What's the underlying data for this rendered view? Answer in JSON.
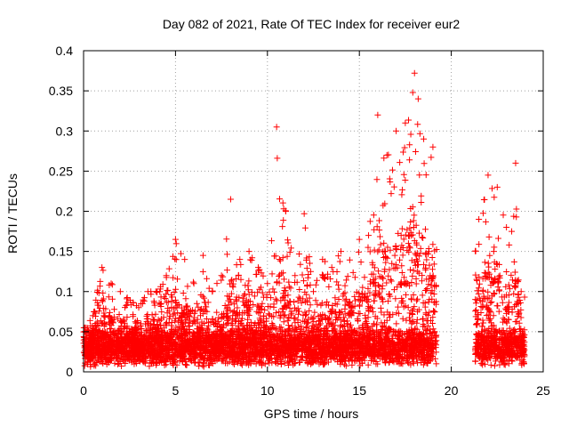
{
  "chart_data": {
    "type": "scatter",
    "title": "Day 082 of 2021, Rate Of TEC Index for receiver eur2",
    "xlabel": "GPS time / hours",
    "ylabel": "ROTI / TECUs",
    "xlim": [
      0,
      25
    ],
    "ylim": [
      0,
      0.4
    ],
    "x_ticks": [
      0,
      5,
      10,
      15,
      20,
      25
    ],
    "x_tick_labels": [
      "0",
      "5",
      "10",
      "15",
      "20",
      "25"
    ],
    "y_ticks": [
      0,
      0.05,
      0.1,
      0.15,
      0.2,
      0.25,
      0.3,
      0.35,
      0.4
    ],
    "y_tick_labels": [
      "0",
      "0.05",
      "0.1",
      "0.15",
      "0.2",
      "0.25",
      "0.3",
      "0.35",
      "0.4"
    ],
    "grid": true,
    "marker": "+",
    "color": "#ff0000",
    "segments": [
      {
        "x_start": 0.0,
        "x_end": 19.2
      },
      {
        "x_start": 21.3,
        "x_end": 24.0
      }
    ],
    "points": [
      [
        0.1,
        0.055
      ],
      [
        0.5,
        0.07
      ],
      [
        1.0,
        0.13
      ],
      [
        1.5,
        0.11
      ],
      [
        2.0,
        0.1
      ],
      [
        3.0,
        0.08
      ],
      [
        3.5,
        0.1
      ],
      [
        4.0,
        0.1
      ],
      [
        4.5,
        0.12
      ],
      [
        5.0,
        0.165
      ],
      [
        5.5,
        0.14
      ],
      [
        6.0,
        0.11
      ],
      [
        6.5,
        0.145
      ],
      [
        7.0,
        0.1
      ],
      [
        7.5,
        0.12
      ],
      [
        8.0,
        0.215
      ],
      [
        8.5,
        0.14
      ],
      [
        9.0,
        0.15
      ],
      [
        9.5,
        0.13
      ],
      [
        10.0,
        0.11
      ],
      [
        10.5,
        0.305
      ],
      [
        11.0,
        0.2
      ],
      [
        11.5,
        0.12
      ],
      [
        12.0,
        0.197
      ],
      [
        12.5,
        0.1
      ],
      [
        13.0,
        0.14
      ],
      [
        13.5,
        0.13
      ],
      [
        14.0,
        0.15
      ],
      [
        15.0,
        0.165
      ],
      [
        15.5,
        0.17
      ],
      [
        16.0,
        0.32
      ],
      [
        16.5,
        0.27
      ],
      [
        17.0,
        0.3
      ],
      [
        17.5,
        0.31
      ],
      [
        18.0,
        0.372
      ],
      [
        18.2,
        0.34
      ],
      [
        18.5,
        0.29
      ],
      [
        19.0,
        0.28
      ],
      [
        21.5,
        0.19
      ],
      [
        22.0,
        0.245
      ],
      [
        22.5,
        0.23
      ],
      [
        23.0,
        0.18
      ],
      [
        23.5,
        0.26
      ],
      [
        23.8,
        0.1
      ]
    ]
  }
}
